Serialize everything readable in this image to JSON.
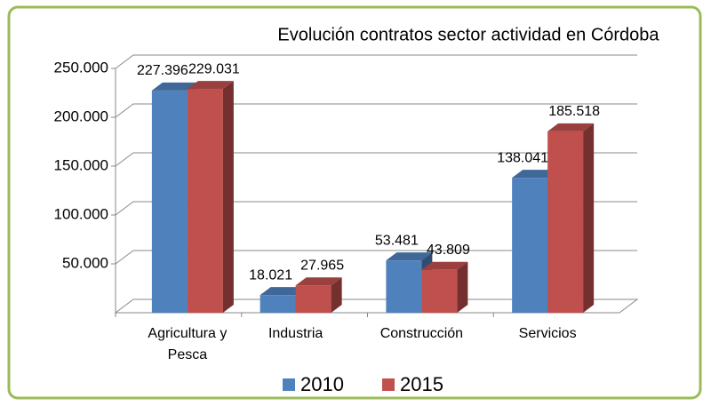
{
  "chart_data": {
    "type": "bar3d",
    "title": "Evolución contratos sector actividad  en Córdoba",
    "categories": [
      "Agricultura y Pesca",
      "Industria",
      "Construcción",
      "Servicios"
    ],
    "series": [
      {
        "name": "2010",
        "color": "#4f81bd",
        "values": [
          227396,
          18021,
          53481,
          138041
        ],
        "value_labels": [
          "227.396",
          "18.021",
          "53.481",
          "138.041"
        ]
      },
      {
        "name": "2015",
        "color": "#c0504d",
        "values": [
          229031,
          27965,
          43809,
          185518
        ],
        "value_labels": [
          "229.031",
          "27.965",
          "43.809",
          "185.518"
        ]
      }
    ],
    "ylim": [
      0,
      250000
    ],
    "yticks": [
      {
        "value": 50000,
        "label": "50.000"
      },
      {
        "value": 100000,
        "label": "100.000"
      },
      {
        "value": 150000,
        "label": "150.000"
      },
      {
        "value": 200000,
        "label": "200.000"
      },
      {
        "value": 250000,
        "label": "250.000"
      }
    ],
    "grid": true,
    "legend": "bottom"
  }
}
